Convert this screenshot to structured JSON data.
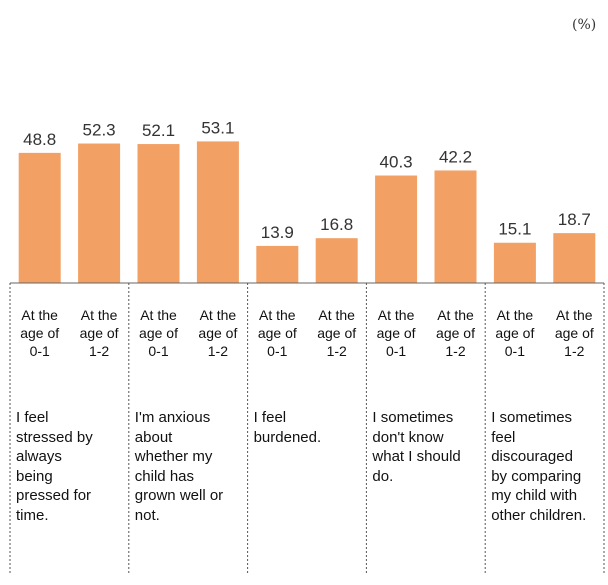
{
  "chart_data": {
    "type": "bar",
    "unit": "(%)",
    "categories": [
      "At the age of 0-1",
      "At the age of 1-2",
      "At the age of 0-1",
      "At the age of 1-2",
      "At the age of 0-1",
      "At the age of 1-2",
      "At the age of 0-1",
      "At the age of 1-2",
      "At the age of 0-1",
      "At the age of 1-2"
    ],
    "groups": [
      "I feel stressed by always being pressed for time.",
      "I'm anxious about whether my child has grown well or not.",
      "I feel burdened.",
      "I sometimes don't know what I should do.",
      "I sometimes feel discouraged by comparing my child with other children."
    ],
    "values": [
      48.8,
      52.3,
      52.1,
      53.1,
      13.9,
      16.8,
      40.3,
      42.2,
      15.1,
      18.7
    ],
    "color": "#f2a063",
    "ylim": [
      0,
      60
    ]
  }
}
